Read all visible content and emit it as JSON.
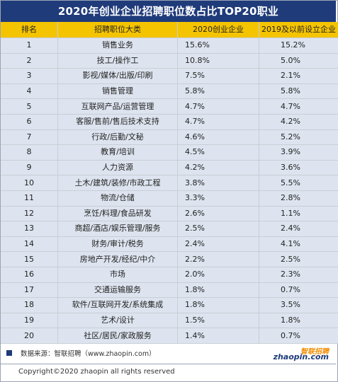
{
  "chart_data": {
    "type": "table",
    "title": "2020年创业企业招聘职位数占比TOP20职业",
    "columns": [
      "排名",
      "招聘职位大类",
      "2020创业企业",
      "2019及以前设立企业"
    ],
    "rows": [
      {
        "rank": "1",
        "job": "销售业务",
        "v2020": "15.6%",
        "v2019": "15.2%"
      },
      {
        "rank": "2",
        "job": "技工/操作工",
        "v2020": "10.8%",
        "v2019": "5.0%"
      },
      {
        "rank": "3",
        "job": "影视/媒体/出版/印刷",
        "v2020": "7.5%",
        "v2019": "2.1%"
      },
      {
        "rank": "4",
        "job": "销售管理",
        "v2020": "5.8%",
        "v2019": "5.8%"
      },
      {
        "rank": "5",
        "job": "互联网产品/运营管理",
        "v2020": "4.7%",
        "v2019": "4.7%"
      },
      {
        "rank": "6",
        "job": "客服/售前/售后技术支持",
        "v2020": "4.7%",
        "v2019": "4.2%"
      },
      {
        "rank": "7",
        "job": "行政/后勤/文秘",
        "v2020": "4.6%",
        "v2019": "5.2%"
      },
      {
        "rank": "8",
        "job": "教育/培训",
        "v2020": "4.5%",
        "v2019": "3.9%"
      },
      {
        "rank": "9",
        "job": "人力资源",
        "v2020": "4.2%",
        "v2019": "3.6%"
      },
      {
        "rank": "10",
        "job": "土木/建筑/装修/市政工程",
        "v2020": "3.8%",
        "v2019": "5.5%"
      },
      {
        "rank": "11",
        "job": "物流/仓储",
        "v2020": "3.3%",
        "v2019": "2.8%"
      },
      {
        "rank": "12",
        "job": "烹饪/料理/食品研发",
        "v2020": "2.6%",
        "v2019": "1.1%"
      },
      {
        "rank": "13",
        "job": "商超/酒店/娱乐管理/服务",
        "v2020": "2.5%",
        "v2019": "2.4%"
      },
      {
        "rank": "14",
        "job": "财务/审计/税务",
        "v2020": "2.4%",
        "v2019": "4.1%"
      },
      {
        "rank": "15",
        "job": "房地产开发/经纪/中介",
        "v2020": "2.2%",
        "v2019": "2.5%"
      },
      {
        "rank": "16",
        "job": "市场",
        "v2020": "2.0%",
        "v2019": "2.3%"
      },
      {
        "rank": "17",
        "job": "交通运输服务",
        "v2020": "1.8%",
        "v2019": "0.7%"
      },
      {
        "rank": "18",
        "job": "软件/互联网开发/系统集成",
        "v2020": "1.8%",
        "v2019": "3.5%"
      },
      {
        "rank": "19",
        "job": "艺术/设计",
        "v2020": "1.5%",
        "v2019": "1.8%"
      },
      {
        "rank": "20",
        "job": "社区/居民/家政服务",
        "v2020": "1.4%",
        "v2019": "0.7%"
      }
    ]
  },
  "footer": {
    "source": "数据来源：智联招聘（www.zhaopin.com）",
    "logo_top": "智联招聘",
    "logo_bottom": "zhaopin.com",
    "copyright": "Copyright©2020 zhaopin all rights reserved"
  },
  "colors": {
    "title_bg": "#1f3b7a",
    "header_bg": "#f5c400",
    "row_bg": "#dde4ef"
  }
}
